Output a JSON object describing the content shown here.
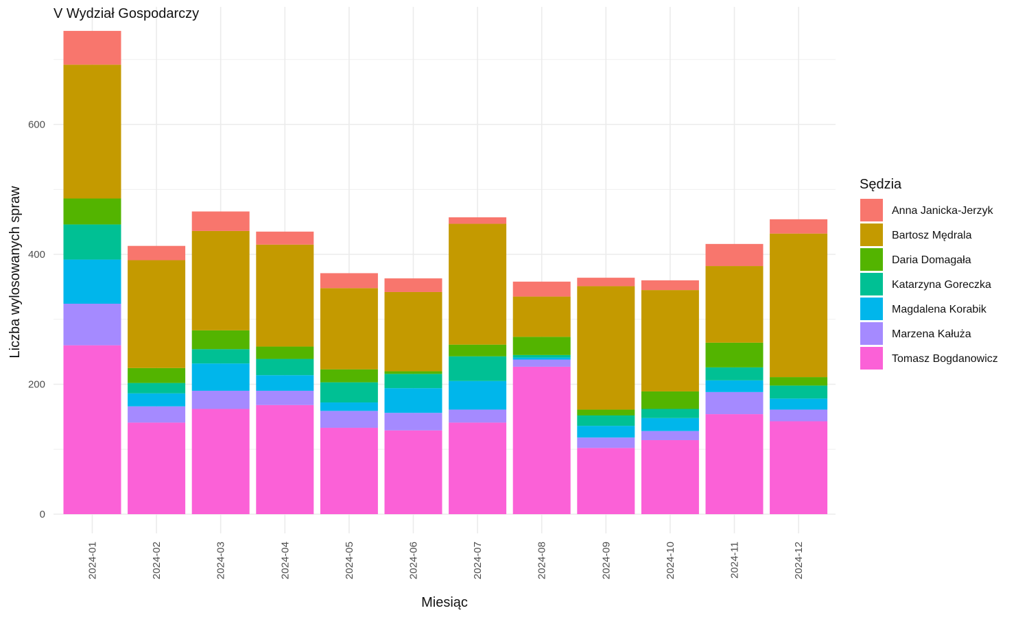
{
  "chart_data": {
    "type": "bar",
    "stacked": true,
    "title": "V Wydział Gospodarczy",
    "xlabel": "Miesiąc",
    "ylabel": "Liczba wylosowanych spraw",
    "ylim": [
      0,
      750
    ],
    "yticks": [
      0,
      200,
      400,
      600
    ],
    "grid": true,
    "legend_title": "Sędzia",
    "legend_position": "right",
    "categories": [
      "2024-01",
      "2024-02",
      "2024-03",
      "2024-04",
      "2024-05",
      "2024-06",
      "2024-07",
      "2024-08",
      "2024-09",
      "2024-10",
      "2024-11",
      "2024-12"
    ],
    "series": [
      {
        "name": "Tomasz Bogdanowicz",
        "color": "#FB61D7",
        "values": [
          260,
          141,
          162,
          168,
          133,
          129,
          141,
          227,
          102,
          114,
          154,
          143
        ]
      },
      {
        "name": "Marzena Kałuża",
        "color": "#A58AFF",
        "values": [
          64,
          25,
          28,
          22,
          26,
          27,
          20,
          11,
          16,
          14,
          34,
          18
        ]
      },
      {
        "name": "Magdalena Korabik",
        "color": "#00B6EB",
        "values": [
          68,
          20,
          42,
          24,
          13,
          38,
          44,
          3,
          18,
          20,
          18,
          17
        ]
      },
      {
        "name": "Katarzyna Goreczka",
        "color": "#00C094",
        "values": [
          54,
          16,
          22,
          25,
          31,
          22,
          38,
          4,
          16,
          14,
          20,
          20
        ]
      },
      {
        "name": "Daria Domagała",
        "color": "#53B400",
        "values": [
          40,
          23,
          29,
          19,
          20,
          4,
          18,
          28,
          9,
          27,
          38,
          13
        ]
      },
      {
        "name": "Bartosz Mędrala",
        "color": "#C49A00",
        "values": [
          206,
          166,
          153,
          157,
          125,
          122,
          186,
          62,
          190,
          156,
          118,
          221
        ]
      },
      {
        "name": "Anna Janicka-Jerzyk",
        "color": "#F8766D",
        "values": [
          52,
          22,
          30,
          20,
          23,
          21,
          10,
          23,
          13,
          15,
          34,
          22
        ]
      }
    ]
  }
}
